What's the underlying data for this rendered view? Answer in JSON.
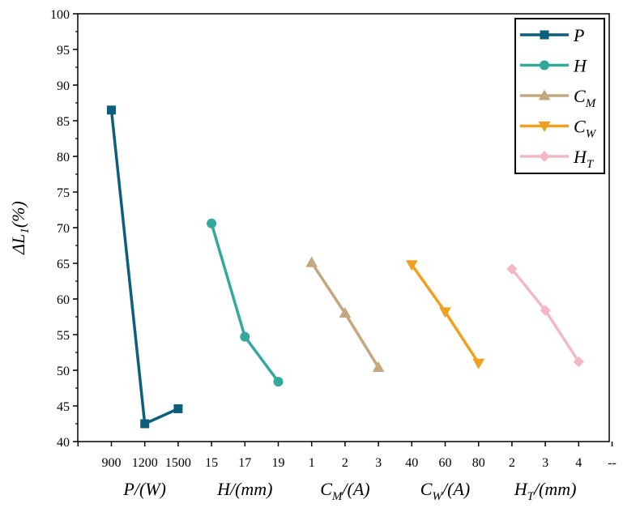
{
  "chart_data": {
    "type": "line",
    "ylabel": {
      "main": "ΔL",
      "sub": "1",
      "suffix": "(%)"
    },
    "ylim": [
      40,
      100
    ],
    "yticks": [
      40,
      45,
      50,
      55,
      60,
      65,
      70,
      75,
      80,
      85,
      90,
      95,
      100
    ],
    "x_tick_labels": [
      "900",
      "1200",
      "1500",
      "15",
      "17",
      "19",
      "1",
      "2",
      "3",
      "40",
      "60",
      "80",
      "2",
      "3",
      "4",
      "--"
    ],
    "series": [
      {
        "name": "P",
        "sub": "",
        "color": "#0d5f7d",
        "marker": "square",
        "x_labels": [
          "900",
          "1200",
          "1500"
        ],
        "values": [
          86.5,
          42.5,
          44.6
        ],
        "group_label": {
          "main": "P/(W)",
          "sub": "",
          "suffix": ""
        }
      },
      {
        "name": "H",
        "sub": "",
        "color": "#33a89c",
        "marker": "circle",
        "x_labels": [
          "15",
          "17",
          "19"
        ],
        "values": [
          70.6,
          54.7,
          48.4
        ],
        "group_label": {
          "main": "H/(mm)",
          "sub": "",
          "suffix": ""
        }
      },
      {
        "name": "C",
        "sub": "M",
        "color": "#c4a77f",
        "marker": "triangle-up",
        "x_labels": [
          "1",
          "2",
          "3"
        ],
        "values": [
          65.1,
          58.0,
          50.4
        ],
        "group_label": {
          "main": "C",
          "sub": "M",
          "suffix": "/(A)"
        }
      },
      {
        "name": "C",
        "sub": "W",
        "color": "#f0a01e",
        "marker": "triangle-down",
        "x_labels": [
          "40",
          "60",
          "80"
        ],
        "values": [
          64.8,
          58.2,
          51.0
        ],
        "group_label": {
          "main": "C",
          "sub": "W",
          "suffix": "/(A)"
        }
      },
      {
        "name": "H",
        "sub": "T",
        "color": "#f2b9c4",
        "marker": "diamond",
        "x_labels": [
          "2",
          "3",
          "4"
        ],
        "values": [
          64.2,
          58.4,
          51.2
        ],
        "group_label": {
          "main": "H",
          "sub": "T",
          "suffix": "/(mm)"
        }
      }
    ],
    "legend_position": "top-right",
    "grid": false
  }
}
